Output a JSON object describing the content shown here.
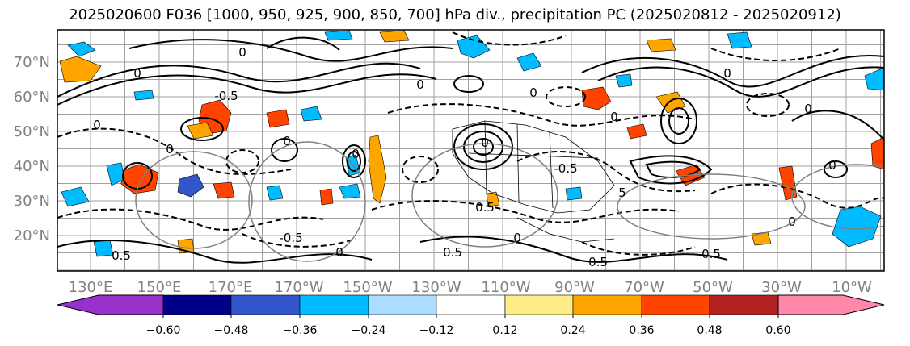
{
  "title": "2025020600 F036 [1000, 950, 925, 900, 850, 700] hPa div., precipitation PC (2025020812 - 2025020912)",
  "map": {
    "lat_labels": [
      "70°N",
      "60°N",
      "50°N",
      "40°N",
      "30°N",
      "20°N"
    ],
    "lat_values": [
      70,
      60,
      50,
      40,
      30,
      20
    ],
    "lon_labels": [
      "130°E",
      "150°E",
      "170°E",
      "170°W",
      "150°W",
      "130°W",
      "110°W",
      "90°W",
      "70°W",
      "50°W",
      "30°W",
      "10°W"
    ],
    "contour_labels": [
      "0",
      "0",
      "0",
      "0",
      "0",
      "0",
      "0",
      "0",
      "0",
      "0",
      "0",
      "0",
      "0",
      "0",
      "5",
      "0.5",
      "-0.5",
      "0.5",
      "0",
      "0.5",
      "0",
      "-0.5",
      "0.5",
      "0.5",
      "-0.5"
    ],
    "frame_color": "#000000",
    "grid_color": "#a0a0a0"
  },
  "colorbar": {
    "ticks": [
      "−0.60",
      "−0.48",
      "−0.36",
      "−0.24",
      "−0.12",
      "0.12",
      "0.24",
      "0.36",
      "0.48",
      "0.60"
    ],
    "under_color": "#9932cc",
    "over_color": "#ff88aa",
    "colors": [
      "#000088",
      "#3355cc",
      "#00bbff",
      "#aaddff",
      "#ffffff",
      "#ffee88",
      "#ffa500",
      "#ff4400",
      "#b22222"
    ]
  }
}
